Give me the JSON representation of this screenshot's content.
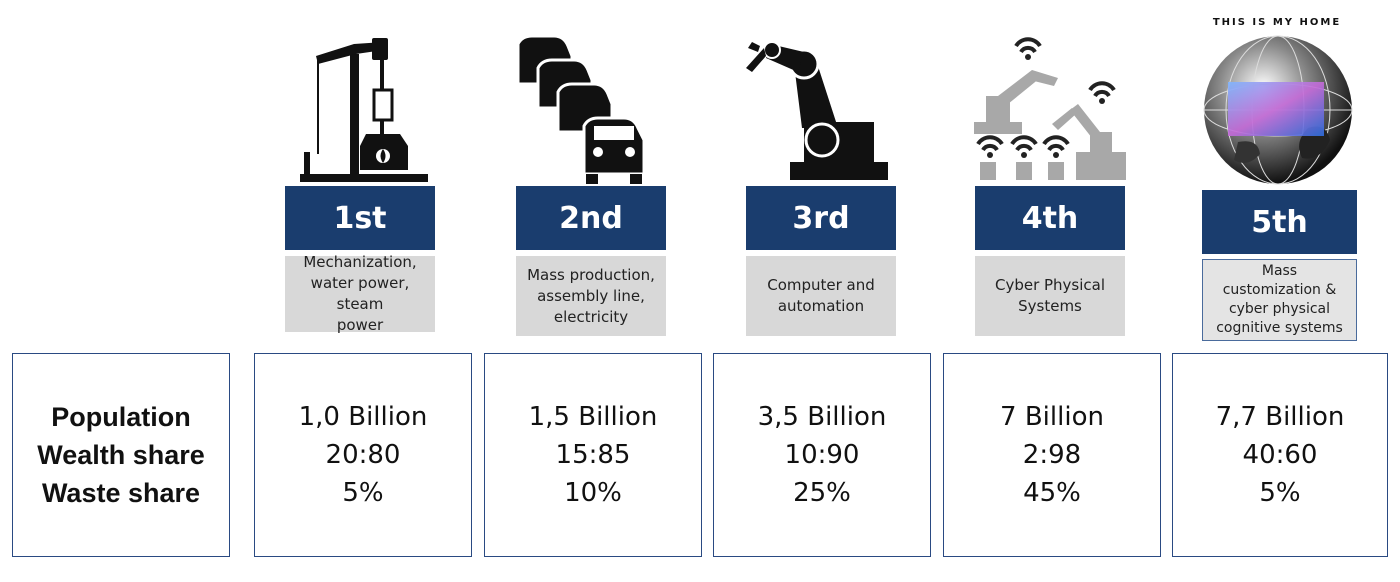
{
  "row_labels": {
    "population": "Population",
    "wealth_share": "Wealth share",
    "waste_share": "Waste share"
  },
  "globe_caption": "THIS IS MY HOME",
  "revolutions": [
    {
      "ordinal": "1st",
      "description": [
        "Mechanization,",
        "water power, steam",
        "power"
      ],
      "population": "1,0 Billion",
      "wealth_share": "20:80",
      "waste_share": "5%",
      "icon": "steam-engine-icon"
    },
    {
      "ordinal": "2nd",
      "description": [
        "Mass production,",
        "assembly line,",
        "electricity"
      ],
      "population": "1,5 Billion",
      "wealth_share": "15:85",
      "waste_share": "10%",
      "icon": "cars-assembly-icon"
    },
    {
      "ordinal": "3rd",
      "description": [
        "Computer and",
        "automation"
      ],
      "population": "3,5 Billion",
      "wealth_share": "10:90",
      "waste_share": "25%",
      "icon": "robot-arm-icon"
    },
    {
      "ordinal": "4th",
      "description": [
        "Cyber Physical",
        "Systems"
      ],
      "population": "7 Billion",
      "wealth_share": "2:98",
      "waste_share": "45%",
      "icon": "connected-robots-icon"
    },
    {
      "ordinal": "5th",
      "description": [
        "Mass",
        "customization &",
        "cyber physical",
        "cognitive systems"
      ],
      "population": "7,7 Billion",
      "wealth_share": "40:60",
      "waste_share": "5%",
      "icon": "globe-icon"
    }
  ]
}
